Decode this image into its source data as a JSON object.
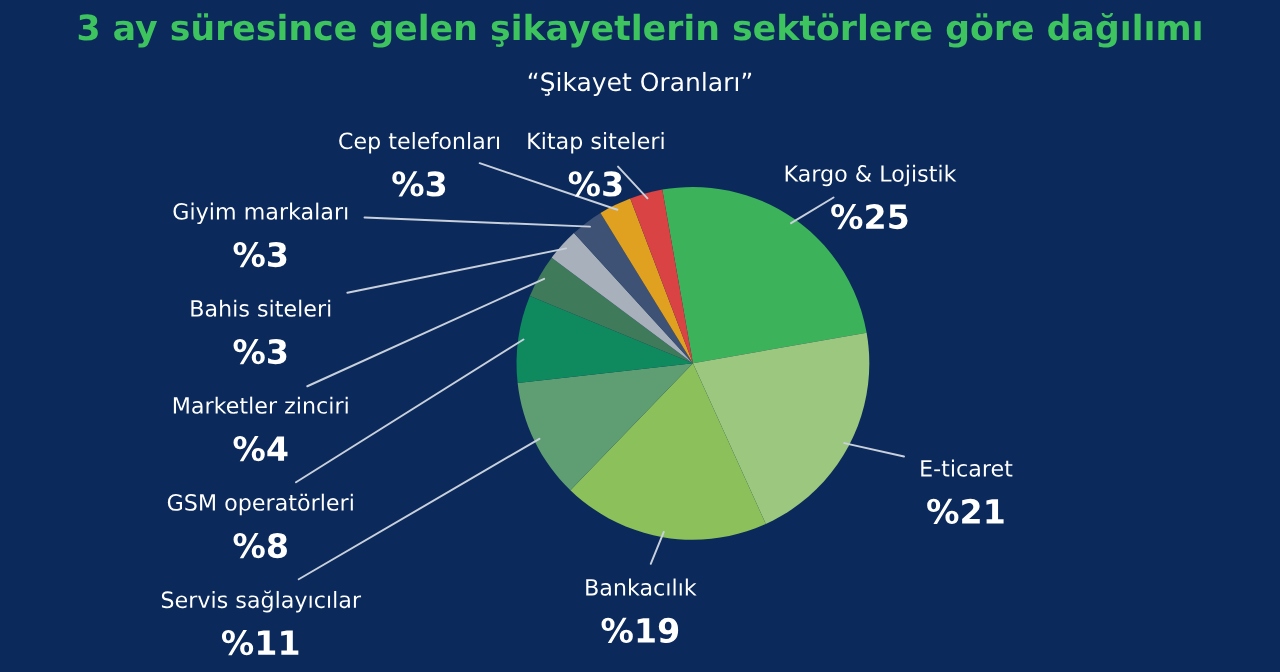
{
  "chart_data": {
    "type": "pie",
    "title": "3 ay süresince gelen şikayetlerin sektörlere göre dağılımı",
    "subtitle": "“Şikayet Oranları”",
    "categories": [
      "Kargo & Lojistik",
      "E-ticaret",
      "Bankacılık",
      "Servis sağlayıcılar",
      "GSM operatörleri",
      "Marketler zinciri",
      "Bahis siteleri",
      "Giyim markaları",
      "Cep telefonları",
      "Kitap siteleri"
    ],
    "values": [
      25,
      21,
      19,
      11,
      8,
      4,
      3,
      3,
      3,
      3
    ],
    "value_labels": [
      "%25",
      "%21",
      "%19",
      "%11",
      "%8",
      "%4",
      "%3",
      "%3",
      "%3",
      "%3"
    ],
    "colors": [
      "#3cb35a",
      "#9cc77e",
      "#8bc05a",
      "#5f9e72",
      "#0f8a5f",
      "#3f7a5b",
      "#a8b0bc",
      "#3d5275",
      "#e0a020",
      "#d94343"
    ],
    "legend": false
  }
}
